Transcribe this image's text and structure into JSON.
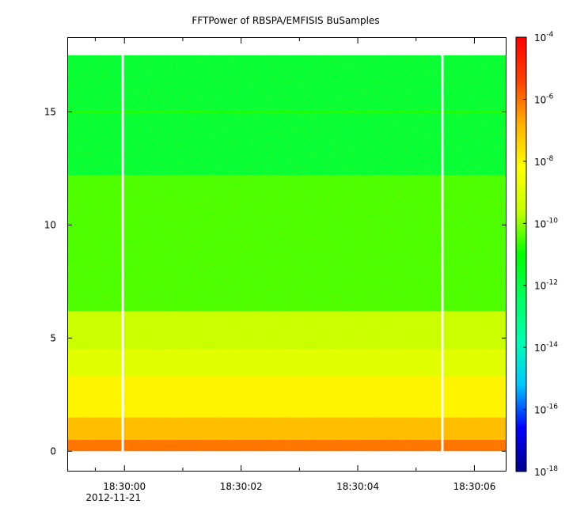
{
  "chart_data": {
    "type": "heatmap",
    "title": "FFTPower of RBSPA/EMFISIS  BuSamples",
    "xlabel": "",
    "ylabel": "",
    "x_axis": {
      "range": [
        "18:29:59.02",
        "18:30:06.55"
      ],
      "major_ticks": [
        {
          "value": "18:30:00",
          "label": "18:30:00"
        },
        {
          "value": "18:30:02",
          "label": "18:30:02"
        },
        {
          "value": "18:30:04",
          "label": "18:30:04"
        },
        {
          "value": "18:30:06",
          "label": "18:30:06"
        }
      ],
      "minor_ticks": [
        "18:29:59.5",
        "18:30:01",
        "18:30:03",
        "18:30:05"
      ],
      "date_label": "2012-11-21"
    },
    "y_axis": {
      "range": [
        -0.9,
        18.3
      ],
      "ticks": [
        0,
        5,
        10,
        15
      ],
      "tick_labels": [
        "0",
        "5",
        "10",
        "15"
      ]
    },
    "colorbar": {
      "scale": "log",
      "range": [
        1e-18,
        0.0001
      ],
      "tick_base": "10",
      "tick_exponents": [
        "-4",
        "-6",
        "-8",
        "-10",
        "-12",
        "-14",
        "-16",
        "-18"
      ],
      "colormap": [
        "#00008b",
        "#0000ff",
        "#00c8ff",
        "#00ffb0",
        "#00ff60",
        "#00ff00",
        "#c8ff00",
        "#ffff00",
        "#ffb000",
        "#ff4000",
        "#ff0000"
      ]
    },
    "data_extent": {
      "y_min": 0,
      "y_max": 17.5
    },
    "data_gaps": [
      {
        "start": "18:29:59.95",
        "end": "18:29:59.98"
      },
      {
        "start": "18:30:05.43",
        "end": "18:30:05.46"
      }
    ],
    "frequency_bands": [
      {
        "y_from": 0.0,
        "y_to": 0.5,
        "log10_power": -6.0
      },
      {
        "y_from": 0.5,
        "y_to": 1.5,
        "log10_power": -7.0
      },
      {
        "y_from": 1.5,
        "y_to": 3.3,
        "log10_power": -8.0
      },
      {
        "y_from": 3.3,
        "y_to": 4.5,
        "log10_power": -9.0
      },
      {
        "y_from": 4.5,
        "y_to": 6.2,
        "log10_power": -9.6
      },
      {
        "y_from": 6.2,
        "y_to": 12.2,
        "log10_power": -10.5
      },
      {
        "y_from": 12.2,
        "y_to": 17.5,
        "log10_power": -11.8
      }
    ],
    "line_feature": {
      "y": 15.0,
      "log10_power": -10.8
    }
  }
}
